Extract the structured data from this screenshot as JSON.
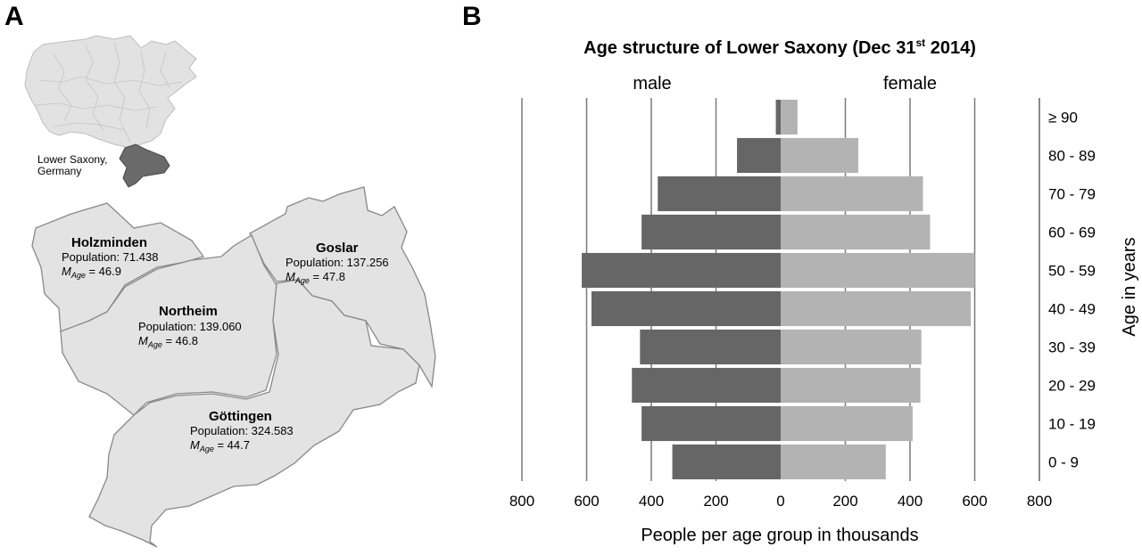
{
  "panel_a": {
    "letter": "A",
    "inset_label_line1": "Lower Saxony,",
    "inset_label_line2": "Germany",
    "districts": [
      {
        "name": "Holzminden",
        "population_label": "Population: 71.438",
        "m_letter": "M",
        "m_sub": "Age",
        "m_value": " = 46.9"
      },
      {
        "name": "Goslar",
        "population_label": "Population: 137.256",
        "m_letter": "M",
        "m_sub": "Age",
        "m_value": " = 47.8"
      },
      {
        "name": "Northeim",
        "population_label": "Population: 139.060",
        "m_letter": "M",
        "m_sub": "Age",
        "m_value": " = 46.8"
      },
      {
        "name": "Göttingen",
        "population_label": "Population: 324.583",
        "m_letter": "M",
        "m_sub": "Age",
        "m_value": " = 44.7"
      }
    ]
  },
  "panel_b": {
    "letter": "B"
  },
  "chart_data": {
    "type": "bar",
    "orientation": "horizontal-population-pyramid",
    "title": "Age structure of Lower Saxony (Dec 31",
    "title_superscript": "st",
    "title_end": " 2014)",
    "left_label": "male",
    "right_label": "female",
    "xlabel": "People per age group in thousands",
    "ylabel": "Age in years",
    "xlim": [
      -800,
      800
    ],
    "x_ticks": [
      {
        "value": -800,
        "label": "800"
      },
      {
        "value": -600,
        "label": "600"
      },
      {
        "value": -400,
        "label": "400"
      },
      {
        "value": -200,
        "label": "200"
      },
      {
        "value": 0,
        "label": "0"
      },
      {
        "value": 200,
        "label": "200"
      },
      {
        "value": 400,
        "label": "400"
      },
      {
        "value": 600,
        "label": "600"
      },
      {
        "value": 800,
        "label": "800"
      }
    ],
    "categories": [
      "≥ 90",
      "80 - 89",
      "70 - 79",
      "60 - 69",
      "50 - 59",
      "40 - 49",
      "30 - 39",
      "20 - 29",
      "10 - 19",
      "0 - 9"
    ],
    "series": [
      {
        "name": "male",
        "values": [
          15,
          135,
          380,
          430,
          615,
          585,
          435,
          460,
          430,
          335
        ]
      },
      {
        "name": "female",
        "values": [
          52,
          240,
          440,
          462,
          600,
          588,
          435,
          432,
          408,
          325
        ]
      }
    ],
    "colors": {
      "male": "#666666",
      "female": "#b3b3b3",
      "gridline": "#7a7a7a"
    },
    "grid": true
  }
}
